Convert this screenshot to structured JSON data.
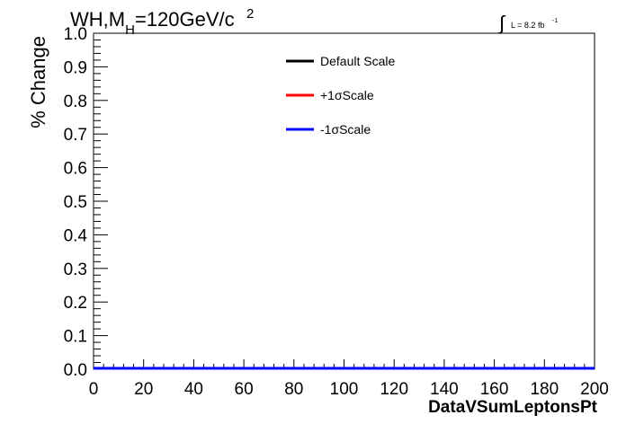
{
  "chart_data": {
    "type": "line",
    "title": {
      "main": "WH,M",
      "sub": "H",
      "rest": "=120GeV/c",
      "sup": "2"
    },
    "lumi": {
      "integral": "∫",
      "text": "L = 8.2 fb",
      "sup": "-1"
    },
    "xlabel": "DataVSumLeptonsPt",
    "ylabel": "% Change",
    "xlim": [
      0,
      200
    ],
    "ylim": [
      0,
      1.0
    ],
    "x_ticks": [
      0,
      20,
      40,
      60,
      80,
      100,
      120,
      140,
      160,
      180,
      200
    ],
    "x_tick_labels": [
      "0",
      "20",
      "40",
      "60",
      "80",
      "100",
      "120",
      "140",
      "160",
      "180",
      "200"
    ],
    "y_ticks": [
      0,
      0.1,
      0.2,
      0.3,
      0.4,
      0.5,
      0.6,
      0.7,
      0.8,
      0.9,
      1.0
    ],
    "y_tick_labels": [
      "0.0",
      "0.1",
      "0.2",
      "0.3",
      "0.4",
      "0.5",
      "0.6",
      "0.7",
      "0.8",
      "0.9",
      "1.0"
    ],
    "grid": false,
    "legend_position": "top-right",
    "series": [
      {
        "name": "Default Scale",
        "color": "#000000",
        "x": [
          0,
          200
        ],
        "y": [
          0,
          0
        ]
      },
      {
        "name": "+1σScale",
        "color": "#ff0000",
        "x": [
          0,
          200
        ],
        "y": [
          0,
          0
        ]
      },
      {
        "name": "-1σScale",
        "color": "#0000ff",
        "x": [
          0,
          200
        ],
        "y": [
          0,
          0
        ]
      }
    ]
  }
}
